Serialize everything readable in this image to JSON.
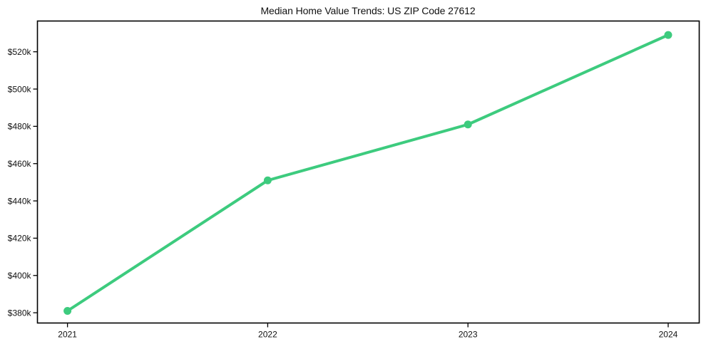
{
  "figure": {
    "background": "#ffffff"
  },
  "chart_data": {
    "type": "line",
    "title": "Median Home Value Trends: US ZIP Code 27612",
    "x": [
      2021,
      2022,
      2023,
      2024
    ],
    "x_tick_labels": [
      "2021",
      "2022",
      "2023",
      "2024"
    ],
    "values": [
      381000,
      451000,
      481000,
      529000
    ],
    "y_ticks": [
      380000,
      400000,
      420000,
      440000,
      460000,
      480000,
      500000,
      520000
    ],
    "y_tick_labels": [
      "$380k",
      "$400k",
      "$420k",
      "$440k",
      "$460k",
      "$480k",
      "$500k",
      "$520k"
    ],
    "xlim": [
      2020.85,
      2024.155
    ],
    "ylim": [
      374500,
      536500
    ],
    "xlabel": "",
    "ylabel": "",
    "grid": false,
    "legend": "none",
    "line_color": "#3dcb7e",
    "line_width": 4,
    "marker": "circle",
    "marker_radius": 5.5,
    "axis_color": "#000000",
    "text_color": "#111111",
    "tick_font_size": 12,
    "plot_bg": "#ffffff"
  }
}
